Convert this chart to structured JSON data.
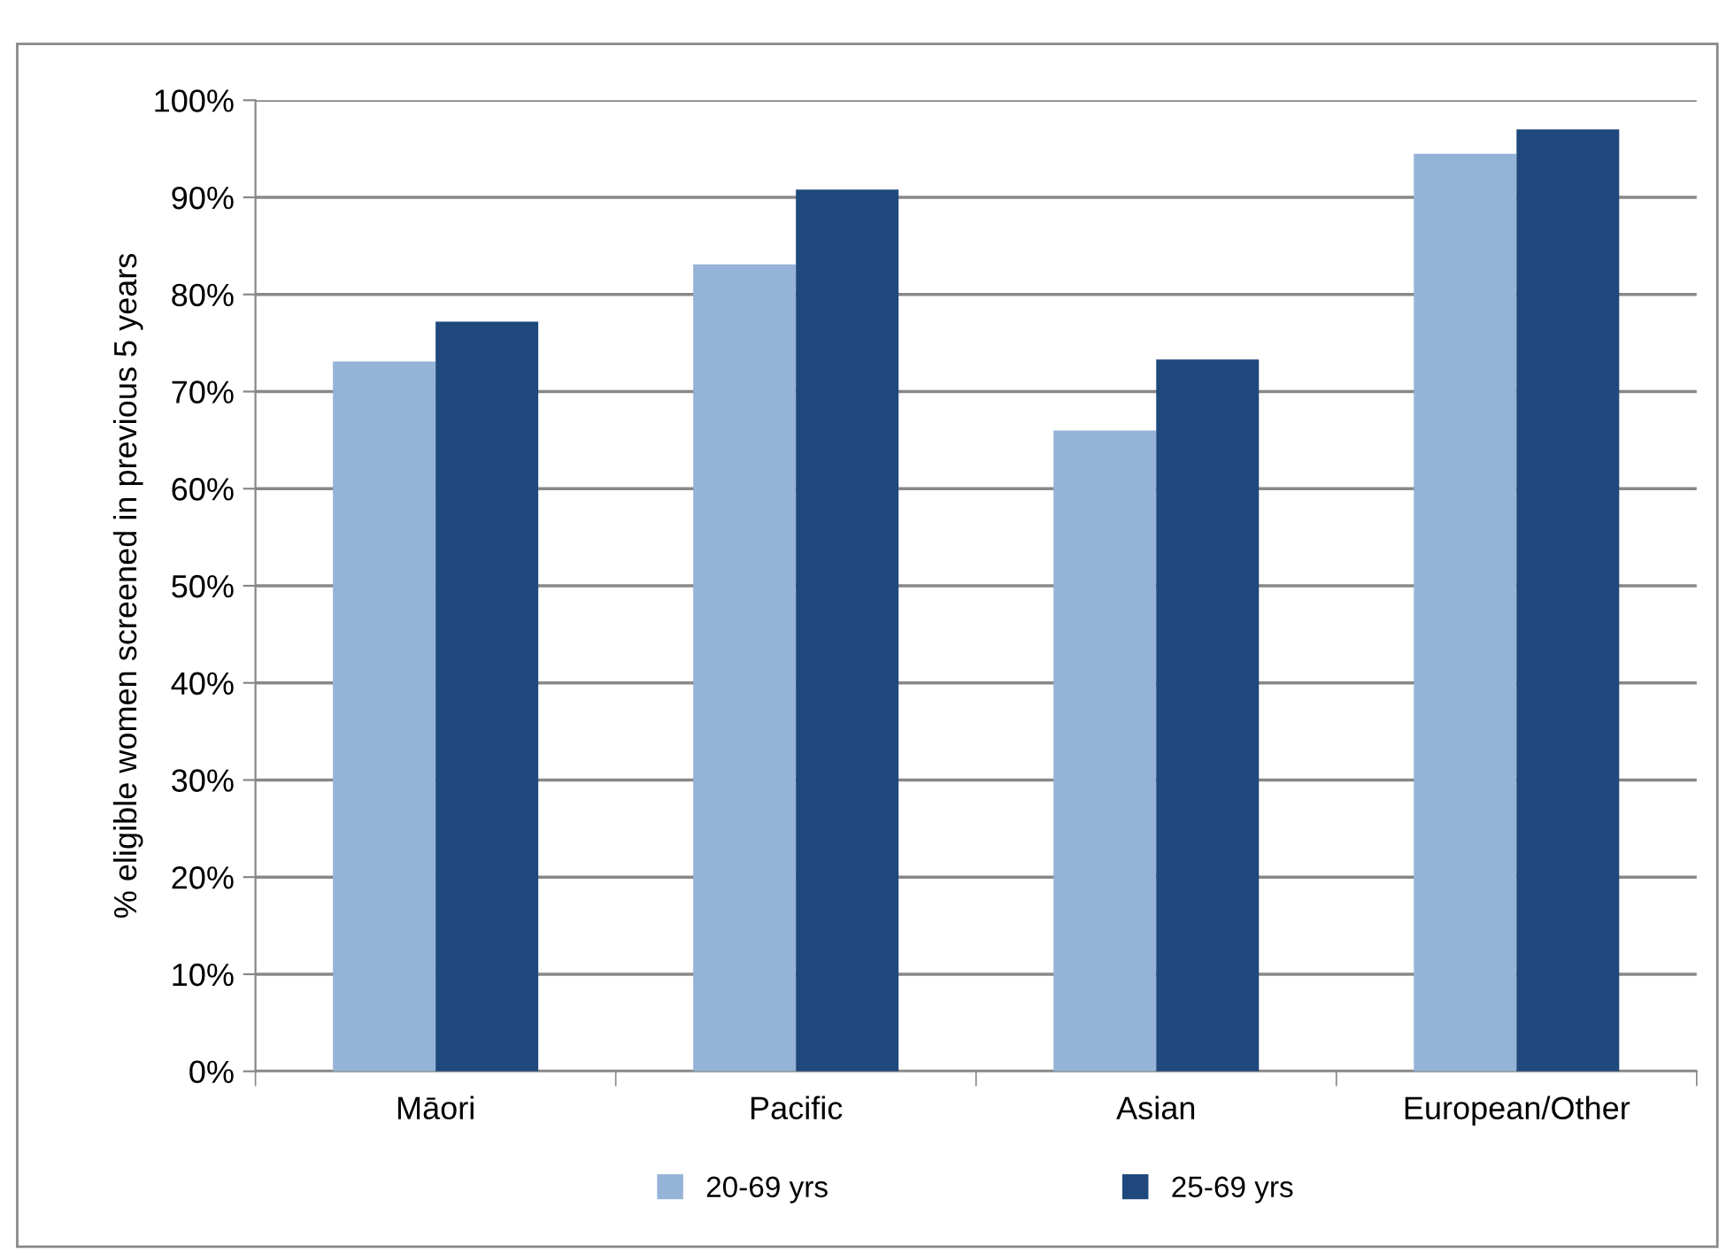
{
  "chart_data": {
    "type": "bar",
    "ylabel": "% eligible women screened in previous 5 years",
    "categories": [
      "Māori",
      "Pacific",
      "Asian",
      "European/Other"
    ],
    "series": [
      {
        "name": "20-69 yrs",
        "color": "#95b3d7",
        "values": [
          73.1,
          83.1,
          66.0,
          94.5
        ]
      },
      {
        "name": "25-69 yrs",
        "color": "#1f497d",
        "values": [
          77.2,
          90.8,
          73.3,
          97.0
        ]
      }
    ],
    "ylim": [
      0,
      100
    ],
    "yticks": [
      {
        "value": 0,
        "label": "0%"
      },
      {
        "value": 10,
        "label": "10%"
      },
      {
        "value": 20,
        "label": "20%"
      },
      {
        "value": 30,
        "label": "30%"
      },
      {
        "value": 40,
        "label": "40%"
      },
      {
        "value": 50,
        "label": "50%"
      },
      {
        "value": 60,
        "label": "60%"
      },
      {
        "value": 70,
        "label": "70%"
      },
      {
        "value": 80,
        "label": "80%"
      },
      {
        "value": 90,
        "label": "90%"
      },
      {
        "value": 100,
        "label": "100%"
      }
    ],
    "grid": "y",
    "legend": "bottom"
  }
}
